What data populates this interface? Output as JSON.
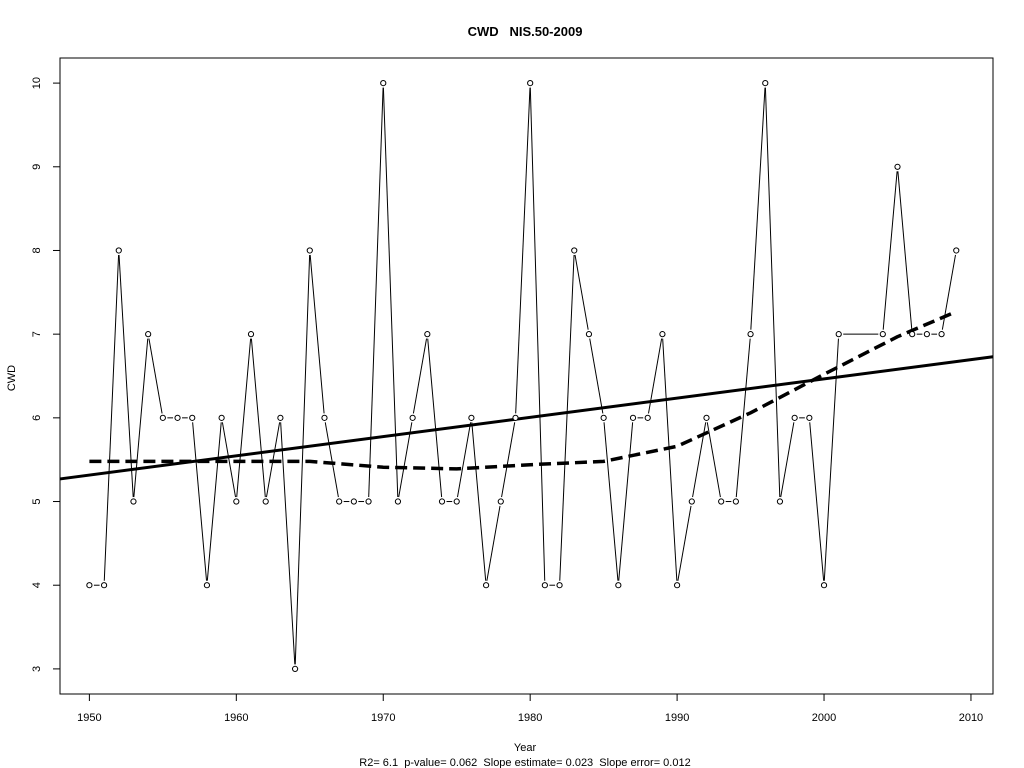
{
  "chart_data": {
    "type": "line",
    "title": "CWD   NIS.50-2009",
    "xlabel": "Year",
    "ylabel": "CWD",
    "subtitle": "R2= 6.1  p-value= 0.062  Slope estimate= 0.023  Slope error= 0.012",
    "xlim": [
      1948,
      2011.5
    ],
    "ylim": [
      2.7,
      10.3
    ],
    "x_ticks": [
      1950,
      1960,
      1970,
      1980,
      1990,
      2000,
      2010
    ],
    "y_ticks": [
      3,
      4,
      5,
      6,
      7,
      8,
      9,
      10
    ],
    "grid": false,
    "legend": "none",
    "series": [
      {
        "style": "line-with-open-circles",
        "x": [
          1950,
          1951,
          1952,
          1953,
          1954,
          1955,
          1956,
          1957,
          1958,
          1959,
          1960,
          1961,
          1962,
          1963,
          1964,
          1965,
          1966,
          1967,
          1968,
          1969,
          1970,
          1971,
          1972,
          1973,
          1974,
          1975,
          1976,
          1977,
          1978,
          1979,
          1980,
          1981,
          1982,
          1983,
          1984,
          1985,
          1986,
          1987,
          1988,
          1989,
          1990,
          1991,
          1992,
          1993,
          1994,
          1995,
          1996,
          1997,
          1998,
          1999,
          2000,
          2001,
          2004,
          2005,
          2006,
          2007,
          2008,
          2009
        ],
        "y": [
          4,
          4,
          8,
          5,
          7,
          6,
          6,
          6,
          4,
          6,
          5,
          7,
          5,
          6,
          3,
          8,
          6,
          5,
          5,
          5,
          10,
          5,
          6,
          7,
          5,
          5,
          6,
          4,
          5,
          6,
          10,
          4,
          4,
          8,
          7,
          6,
          4,
          6,
          6,
          7,
          4,
          5,
          6,
          5,
          5,
          7,
          10,
          5,
          6,
          6,
          4,
          7,
          7,
          9,
          7,
          7,
          7,
          8
        ]
      },
      {
        "style": "solid-thick",
        "kind": "linear trend",
        "x": [
          1948,
          2011.5
        ],
        "y": [
          5.27,
          6.73
        ]
      },
      {
        "style": "dashed-thick",
        "kind": "smoothed curve",
        "x": [
          1950,
          1955,
          1960,
          1965,
          1970,
          1975,
          1980,
          1985,
          1990,
          1995,
          2000,
          2005,
          2009
        ],
        "y": [
          5.48,
          5.48,
          5.48,
          5.48,
          5.41,
          5.39,
          5.44,
          5.48,
          5.66,
          6.06,
          6.52,
          6.97,
          7.27
        ]
      }
    ]
  }
}
